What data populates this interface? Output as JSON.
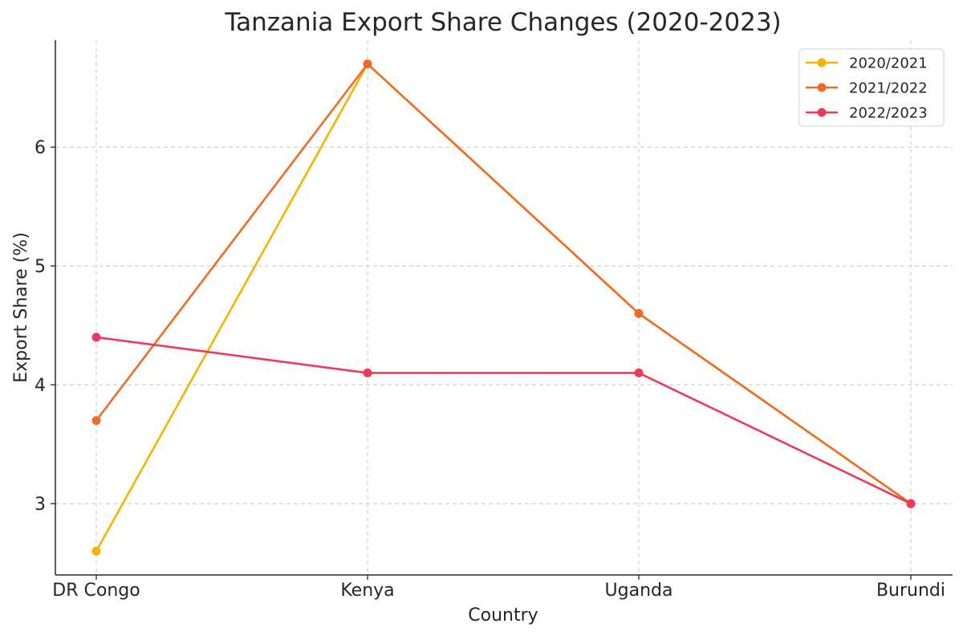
{
  "chart_data": {
    "type": "line",
    "title": "Tanzania Export Share Changes (2020-2023)",
    "xlabel": "Country",
    "ylabel": "Export Share (%)",
    "categories": [
      "DR Congo",
      "Kenya",
      "Uganda",
      "Burundi"
    ],
    "ylim": [
      2.4,
      6.9
    ],
    "yticks": [
      3,
      4,
      5,
      6
    ],
    "grid": true,
    "legend_position": "top-right",
    "series": [
      {
        "name": "2020/2021",
        "color": "#f4b400",
        "values": [
          2.6,
          6.7,
          4.6,
          3.0
        ]
      },
      {
        "name": "2021/2022",
        "color": "#ee6c25",
        "values": [
          3.7,
          6.7,
          4.6,
          3.0
        ]
      },
      {
        "name": "2022/2023",
        "color": "#ee3a5a",
        "values": [
          4.4,
          4.1,
          4.1,
          3.0
        ]
      }
    ]
  }
}
